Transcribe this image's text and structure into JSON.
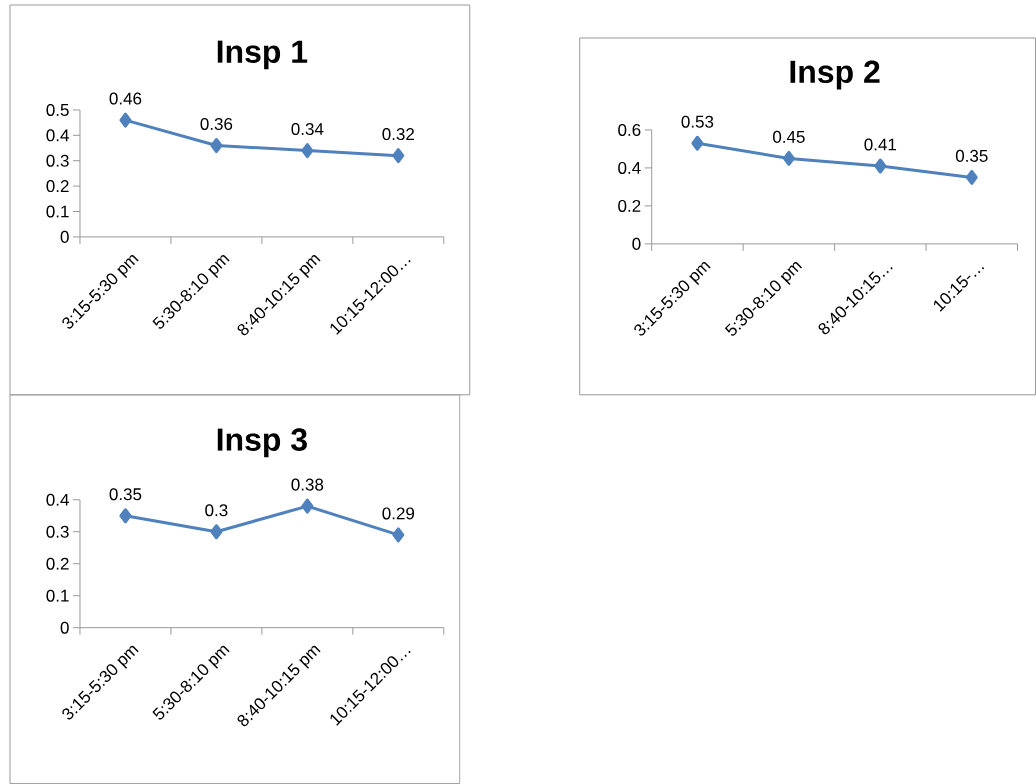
{
  "chart_data": [
    {
      "type": "line",
      "title": "Insp 1",
      "categories": [
        "3:15-5:30 pm",
        "5:30-8:10 pm",
        "8:40-10:15 pm",
        "10:15-12:00…"
      ],
      "values": [
        0.46,
        0.36,
        0.34,
        0.32
      ],
      "color": "#4f81bd",
      "ylim": [
        0,
        0.5
      ],
      "yticks": [
        0,
        0.1,
        0.2,
        0.3,
        0.4,
        0.5
      ],
      "marker": "diamond",
      "data_labels": true,
      "grid": false
    },
    {
      "type": "line",
      "title": "Insp 2",
      "categories": [
        "3:15-5:30 pm",
        "5:30-8:10 pm",
        "8:40-10:15…",
        "10:15-…"
      ],
      "values": [
        0.53,
        0.45,
        0.41,
        0.35
      ],
      "color": "#4f81bd",
      "ylim": [
        0,
        0.6
      ],
      "yticks": [
        0,
        0.2,
        0.4,
        0.6
      ],
      "marker": "diamond",
      "data_labels": true,
      "grid": false
    },
    {
      "type": "line",
      "title": "Insp 3",
      "categories": [
        "3:15-5:30 pm",
        "5:30-8:10 pm",
        "8:40-10:15 pm",
        "10:15-12:00…"
      ],
      "values": [
        0.35,
        0.3,
        0.38,
        0.29
      ],
      "color": "#4f81bd",
      "ylim": [
        0,
        0.4
      ],
      "yticks": [
        0,
        0.1,
        0.2,
        0.3,
        0.4
      ],
      "marker": "diamond",
      "data_labels": true,
      "grid": false
    }
  ]
}
